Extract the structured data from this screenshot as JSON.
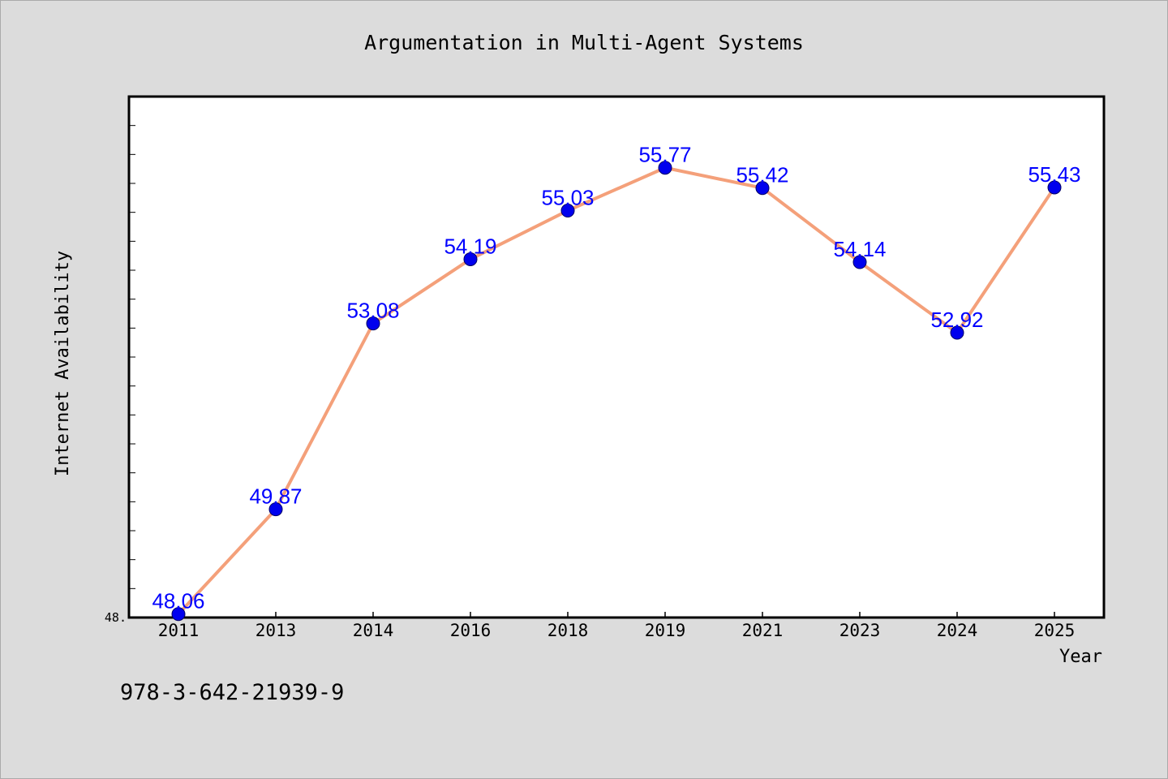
{
  "chart_data": {
    "type": "line",
    "title": "Argumentation in Multi-Agent Systems",
    "xlabel": "Year",
    "ylabel": "Internet Availability",
    "categories": [
      "2011",
      "2013",
      "2014",
      "2016",
      "2018",
      "2019",
      "2021",
      "2023",
      "2024",
      "2025"
    ],
    "series": [
      {
        "values": [
          48.06,
          49.87,
          53.08,
          54.19,
          55.03,
          55.77,
          55.42,
          54.14,
          52.92,
          55.43
        ],
        "labels": [
          "48.06",
          "49.87",
          "53.08",
          "54.19",
          "55.03",
          "55.77",
          "55.42",
          "54.14",
          "52.92",
          "55.43"
        ]
      }
    ],
    "ylim": [
      48.0,
      57.0
    ],
    "ytick_labels": [
      "48."
    ],
    "grid": false,
    "colors": {
      "line": "#f4a07a",
      "marker": "#0000ee",
      "data_label": "#0000ff",
      "plot_background": "#ffffff",
      "figure_background": "#dcdcdc"
    }
  },
  "footer": {
    "isbn": "978-3-642-21939-9"
  }
}
